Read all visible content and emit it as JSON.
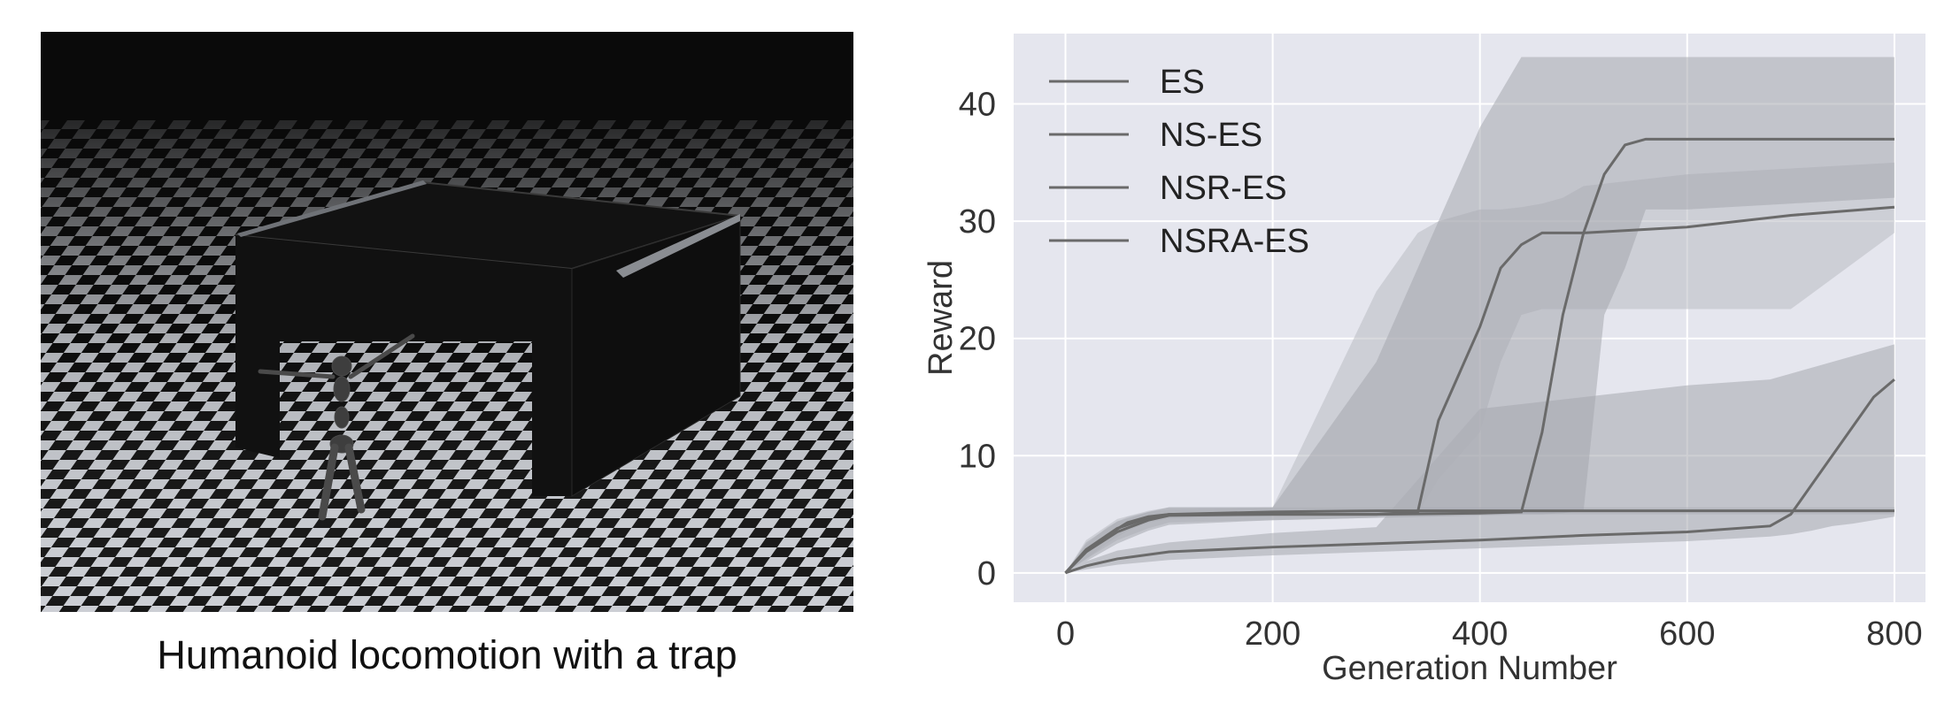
{
  "figure": {
    "caption": "Humanoid locomotion with a trap"
  },
  "colors": {
    "plot_background": "#e5e6ee",
    "grid": "#ffffff",
    "band_light": "#b9bcc2",
    "band_dark": "#a5a8ae",
    "line": "#6a6a6a"
  },
  "chart_data": {
    "type": "line",
    "title": "",
    "xlabel": "Generation Number",
    "ylabel": "Reward",
    "xlim": [
      -50,
      830
    ],
    "ylim": [
      -2.5,
      46
    ],
    "xticks": [
      0,
      200,
      400,
      600,
      800
    ],
    "yticks": [
      0,
      10,
      20,
      30,
      40
    ],
    "grid": true,
    "legend_position": "top-left",
    "series": [
      {
        "name": "ES",
        "x": [
          0,
          20,
          40,
          60,
          80,
          100,
          200,
          300,
          400,
          500,
          600,
          700,
          800
        ],
        "y": [
          0,
          1.8,
          3.2,
          4.3,
          4.8,
          5.0,
          5.2,
          5.3,
          5.3,
          5.3,
          5.3,
          5.3,
          5.3
        ],
        "band_low": [
          0,
          1.2,
          2.5,
          3.6,
          4.3,
          4.6,
          4.9,
          5.0,
          5.0,
          5.0,
          5.0,
          5.0,
          5.0
        ],
        "band_high": [
          0,
          2.4,
          3.9,
          4.8,
          5.2,
          5.4,
          5.6,
          5.6,
          5.6,
          5.6,
          5.6,
          5.6,
          5.6
        ]
      },
      {
        "name": "NS-ES",
        "x": [
          0,
          20,
          50,
          100,
          150,
          200,
          300,
          400,
          500,
          600,
          680,
          700,
          720,
          740,
          760,
          780,
          800
        ],
        "y": [
          0,
          0.6,
          1.2,
          1.8,
          2.0,
          2.2,
          2.5,
          2.8,
          3.2,
          3.5,
          4.0,
          5.0,
          7.5,
          10.0,
          12.5,
          15.0,
          16.5
        ],
        "band_low": [
          0,
          0.3,
          0.7,
          1.1,
          1.3,
          1.5,
          1.8,
          2.1,
          2.4,
          2.7,
          3.1,
          3.3,
          3.6,
          4.0,
          4.2,
          4.5,
          4.8
        ],
        "band_high": [
          0,
          1.0,
          1.9,
          2.6,
          3.0,
          3.4,
          3.9,
          14.0,
          15.0,
          16.0,
          16.5,
          17.0,
          17.5,
          18.0,
          18.5,
          19.0,
          19.5
        ]
      },
      {
        "name": "NSR-ES",
        "x": [
          0,
          20,
          50,
          80,
          100,
          200,
          300,
          340,
          360,
          380,
          400,
          420,
          440,
          460,
          480,
          500,
          600,
          700,
          800
        ],
        "y": [
          0,
          2.0,
          3.8,
          4.7,
          5.0,
          5.0,
          5.0,
          5.2,
          13.0,
          17.0,
          21.0,
          26.0,
          28.0,
          29.0,
          29.0,
          29.0,
          29.5,
          30.5,
          31.2
        ],
        "band_low": [
          0,
          1.2,
          2.8,
          3.8,
          4.3,
          4.5,
          4.7,
          5.0,
          8.0,
          10.0,
          12.0,
          18.0,
          22.0,
          22.5,
          22.5,
          22.5,
          22.5,
          22.5,
          29.0
        ],
        "band_high": [
          0,
          2.8,
          4.6,
          5.3,
          5.6,
          5.6,
          24.0,
          29.0,
          30.0,
          30.5,
          31.0,
          31.0,
          31.2,
          31.5,
          32.0,
          33.0,
          34.0,
          34.5,
          35.0
        ]
      },
      {
        "name": "NSRA-ES",
        "x": [
          0,
          20,
          50,
          80,
          100,
          200,
          300,
          400,
          440,
          460,
          480,
          500,
          520,
          540,
          560,
          600,
          700,
          800
        ],
        "y": [
          0,
          1.8,
          3.5,
          4.5,
          4.9,
          5.0,
          5.0,
          5.1,
          5.2,
          12.0,
          22.0,
          29.0,
          34.0,
          36.5,
          37.0,
          37.0,
          37.0,
          37.0
        ],
        "band_low": [
          0,
          1.0,
          2.5,
          3.6,
          4.1,
          4.5,
          4.7,
          4.9,
          5.0,
          5.0,
          5.1,
          5.3,
          22.0,
          26.0,
          31.0,
          31.0,
          31.5,
          32.0
        ],
        "band_high": [
          0,
          2.6,
          4.4,
          5.2,
          5.6,
          5.6,
          18.0,
          38.0,
          44.0,
          44.0,
          44.0,
          44.0,
          44.0,
          44.0,
          44.0,
          44.0,
          44.0,
          44.0
        ]
      }
    ]
  }
}
